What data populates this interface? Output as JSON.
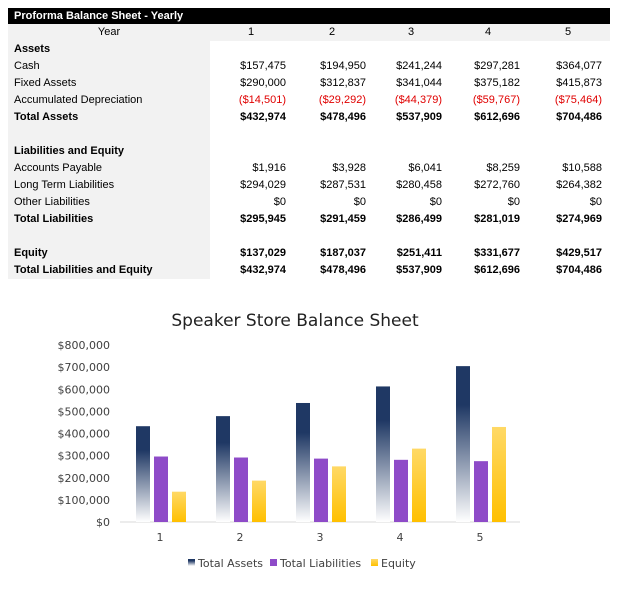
{
  "sheet": {
    "title": "Proforma Balance Sheet - Yearly",
    "year_label": "Year",
    "years": [
      "1",
      "2",
      "3",
      "4",
      "5"
    ],
    "rows": [
      {
        "label": "Assets",
        "bold": true,
        "values": []
      },
      {
        "label": "Cash",
        "values": [
          "$157,475",
          "$194,950",
          "$241,244",
          "$297,281",
          "$364,077"
        ]
      },
      {
        "label": "Fixed Assets",
        "values": [
          "$290,000",
          "$312,837",
          "$341,044",
          "$375,182",
          "$415,873"
        ]
      },
      {
        "label": "Accumulated Depreciation",
        "negative": true,
        "values": [
          "($14,501)",
          "($29,292)",
          "($44,379)",
          "($59,767)",
          "($75,464)"
        ]
      },
      {
        "label": "Total Assets",
        "bold": true,
        "values": [
          "$432,974",
          "$478,496",
          "$537,909",
          "$612,696",
          "$704,486"
        ]
      },
      {
        "label": "",
        "values": []
      },
      {
        "label": "Liabilities and Equity",
        "bold": true,
        "values": []
      },
      {
        "label": "Accounts Payable",
        "values": [
          "$1,916",
          "$3,928",
          "$6,041",
          "$8,259",
          "$10,588"
        ]
      },
      {
        "label": "Long Term Liabilities",
        "values": [
          "$294,029",
          "$287,531",
          "$280,458",
          "$272,760",
          "$264,382"
        ]
      },
      {
        "label": "Other Liabilities",
        "values": [
          "$0",
          "$0",
          "$0",
          "$0",
          "$0"
        ]
      },
      {
        "label": "Total Liabilities",
        "bold": true,
        "values": [
          "$295,945",
          "$291,459",
          "$286,499",
          "$281,019",
          "$274,969"
        ]
      },
      {
        "label": "",
        "values": []
      },
      {
        "label": "Equity",
        "bold": true,
        "values": [
          "$137,029",
          "$187,037",
          "$251,411",
          "$331,677",
          "$429,517"
        ]
      },
      {
        "label": "Total Liabilities and Equity",
        "bold": true,
        "values": [
          "$432,974",
          "$478,496",
          "$537,909",
          "$612,696",
          "$704,486"
        ]
      }
    ],
    "negative_color": "#e00000"
  },
  "chart_data": {
    "type": "bar",
    "title": "Speaker Store Balance Sheet",
    "categories": [
      "1",
      "2",
      "3",
      "4",
      "5"
    ],
    "series": [
      {
        "name": "Total Assets",
        "values": [
          432974,
          478496,
          537909,
          612696,
          704486
        ],
        "color": "#1f3864"
      },
      {
        "name": "Total Liabilities",
        "values": [
          295945,
          291459,
          286499,
          281019,
          274969
        ],
        "color": "#8e4bc8"
      },
      {
        "name": "Equity",
        "values": [
          137029,
          187037,
          251411,
          331677,
          429517
        ],
        "color": "#ffc000"
      }
    ],
    "yticks": [
      "$0",
      "$100,000",
      "$200,000",
      "$300,000",
      "$400,000",
      "$500,000",
      "$600,000",
      "$700,000",
      "$800,000"
    ],
    "ylim": [
      0,
      800000
    ],
    "grid": false,
    "legend": "bottom"
  }
}
